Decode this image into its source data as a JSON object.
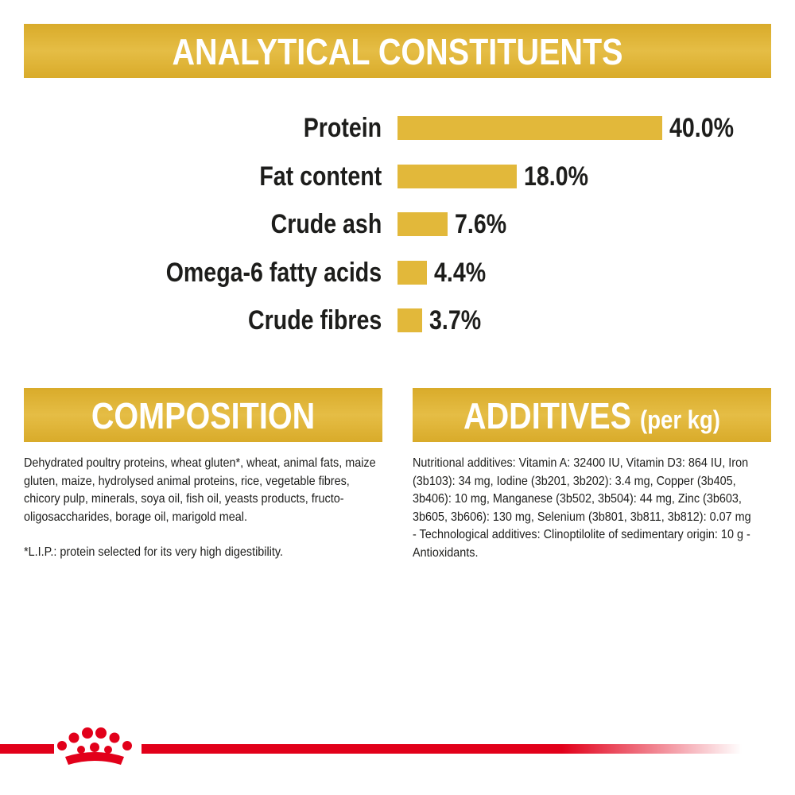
{
  "chart_data": {
    "type": "bar",
    "title": "ANALYTICAL CONSTITUENTS",
    "categories": [
      "Protein",
      "Fat content",
      "Crude ash",
      "Omega-6 fatty acids",
      "Crude fibres"
    ],
    "values": [
      40.0,
      18.0,
      7.6,
      4.4,
      3.7
    ],
    "value_labels": [
      "40.0%",
      "18.0%",
      "7.6%",
      "4.4%",
      "3.7%"
    ],
    "color": "#e2b83a"
  },
  "composition": {
    "title": "COMPOSITION",
    "paragraphs": [
      "Dehydrated poultry proteins, wheat gluten*, wheat, animal fats, maize gluten, maize, hydrolysed animal proteins, rice, vegetable fibres, chicory pulp, minerals, soya oil, fish oil, yeasts products, fructo-oligosaccharides, borage oil, marigold meal.",
      "*L.I.P.: protein selected for its very high digestibility."
    ]
  },
  "additives": {
    "title": "ADDITIVES",
    "title_suffix": "(per kg)",
    "text": "Nutritional additives: Vitamin A: 32400 IU, Vitamin D3: 864 IU, Iron (3b103): 34 mg, Iodine (3b201, 3b202): 3.4 mg, Copper (3b405, 3b406): 10 mg, Manganese (3b502, 3b504): 44 mg, Zinc (3b603, 3b605, 3b606): 130 mg, Selenium (3b801, 3b811, 3b812): 0.07 mg - Technological additives: Clinoptilolite of sedimentary origin: 10 g - Antioxidants."
  }
}
